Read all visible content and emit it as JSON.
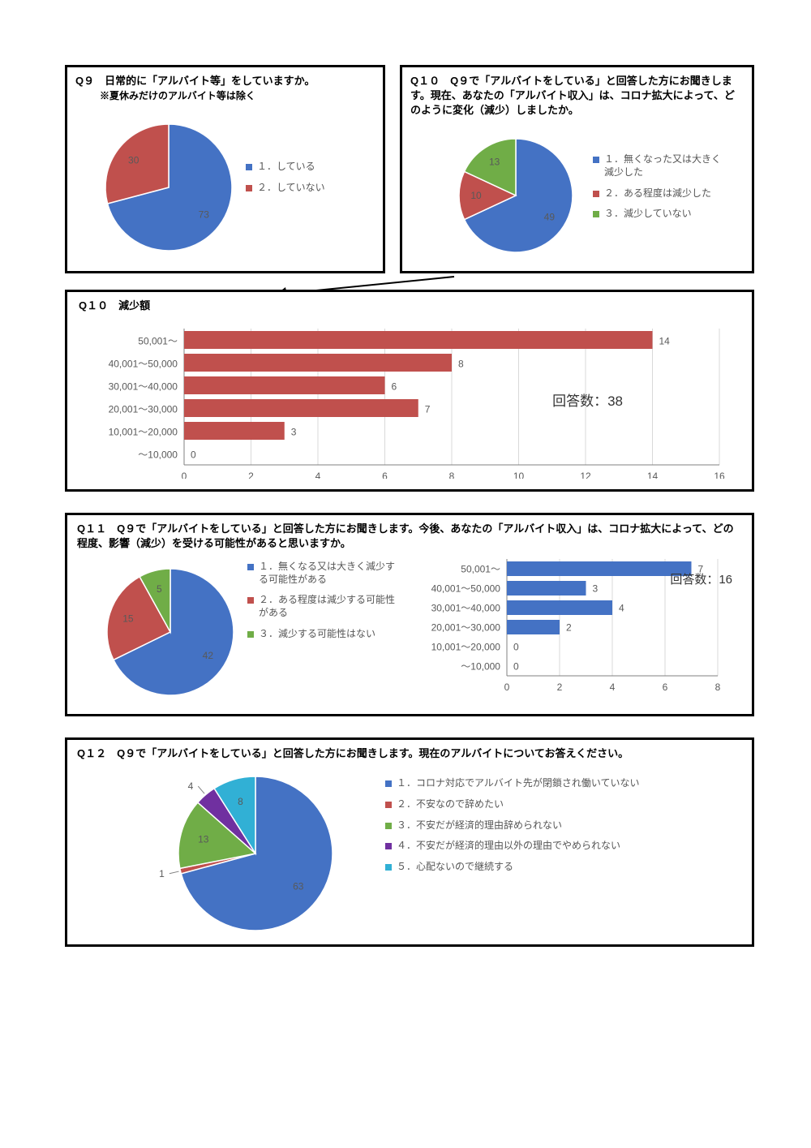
{
  "colors": {
    "blue": "#4472c4",
    "red": "#c0504d",
    "green": "#70ad47",
    "purple": "#7030a0",
    "cyan": "#31b0d5",
    "grid": "#d9d9d9",
    "axis": "#808080",
    "text": "#595959"
  },
  "q9": {
    "title": "Q９　日常的に「アルバイト等」をしていますか。",
    "subtitle": "※夏休みだけのアルバイト等は除く",
    "slices": [
      {
        "label": "１．している",
        "value": 73,
        "color": "#4472c4"
      },
      {
        "label": "２．していない",
        "value": 30,
        "color": "#c0504d"
      }
    ]
  },
  "q10": {
    "title": "Q１０　Q９で「アルバイトをしている」と回答した方にお聞きします。現在、あなたの「アルバイト収入」は、コロナ拡大によって、どのように変化（減少）しましたか。",
    "slices": [
      {
        "label": "１．無くなった又は大きく減少した",
        "value": 49,
        "color": "#4472c4"
      },
      {
        "label": "２．ある程度は減少した",
        "value": 10,
        "color": "#c0504d"
      },
      {
        "label": "３．減少していない",
        "value": 13,
        "color": "#70ad47"
      }
    ]
  },
  "q10bar": {
    "title": "Q１０　減少額",
    "note": "回答数：38",
    "categories": [
      "～10,000",
      "10,001～20,000",
      "20,001～30,000",
      "30,001～40,000",
      "40,001～50,000",
      "50,001～"
    ],
    "values": [
      0,
      3,
      7,
      6,
      8,
      14
    ],
    "xmax": 16,
    "xstep": 2,
    "bar_color": "#c0504d"
  },
  "q11": {
    "title": "Q１１　Q９で「アルバイトをしている」と回答した方にお聞きします。今後、あなたの「アルバイト収入」は、コロナ拡大によって、どの程度、影響（減少）を受ける可能性があると思いますか。",
    "slices": [
      {
        "label": "１．無くなる又は大きく減少する可能性がある",
        "value": 42,
        "color": "#4472c4"
      },
      {
        "label": "２．ある程度は減少する可能性がある",
        "value": 15,
        "color": "#c0504d"
      },
      {
        "label": "３．減少する可能性はない",
        "value": 5,
        "color": "#70ad47"
      }
    ],
    "bar": {
      "note": "回答数：16",
      "categories": [
        "～10,000",
        "10,001～20,000",
        "20,001～30,000",
        "30,001～40,000",
        "40,001～50,000",
        "50,001～"
      ],
      "values": [
        0,
        0,
        2,
        4,
        3,
        7
      ],
      "xmax": 8,
      "xstep": 2,
      "bar_color": "#4472c4"
    }
  },
  "q12": {
    "title": "Q１２　Q９で「アルバイトをしている」と回答した方にお聞きします。現在のアルバイトについてお答えください。",
    "slices": [
      {
        "label": "１．コロナ対応でアルバイト先が閉鎖され働いていない",
        "value": 63,
        "color": "#4472c4"
      },
      {
        "label": "２．不安なので辞めたい",
        "value": 1,
        "color": "#c0504d"
      },
      {
        "label": "３．不安だが経済的理由辞められない",
        "value": 13,
        "color": "#70ad47"
      },
      {
        "label": "４．不安だが経済的理由以外の理由でやめられない",
        "value": 4,
        "color": "#7030a0"
      },
      {
        "label": "５．心配ないので継続する",
        "value": 8,
        "color": "#31b0d5"
      }
    ]
  }
}
